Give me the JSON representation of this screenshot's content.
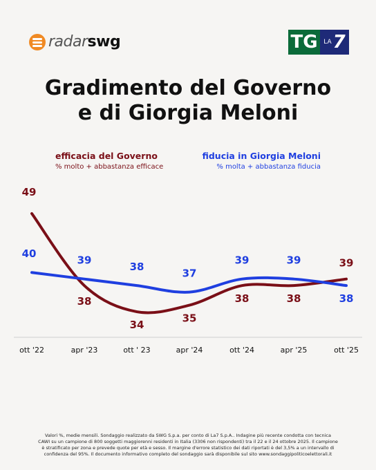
{
  "header": {
    "radar_logo_a": "radar",
    "radar_logo_b": "swg",
    "tg_logo": "TG",
    "la7_small": "LA",
    "la7_big": "7"
  },
  "title_line1": "Gradimento del Governo",
  "title_line2": "e di Giorgia Meloni",
  "colors": {
    "governo": "#7a0f17",
    "meloni": "#1f3fe0"
  },
  "chart_data": {
    "type": "line",
    "categories": [
      "ott '22",
      "apr '23",
      "ott ' 23",
      "apr '24",
      "ott '24",
      "apr '25",
      "ott '25"
    ],
    "series": [
      {
        "name": "efficacia del Governo",
        "subtitle": "% molto + abbastanza efficace",
        "values": [
          49,
          38,
          34,
          35,
          38,
          38,
          39
        ]
      },
      {
        "name": "fiducia in Giorgia Meloni",
        "subtitle": "% molta + abbastanza fiducia",
        "values": [
          40,
          39,
          38,
          37,
          39,
          39,
          38
        ]
      }
    ],
    "ylim": [
      32,
      51
    ]
  },
  "footnote": {
    "line1": "Valori %, medie mensili. Sondaggio realizzato da SWG S.p.a. per conto di La7 S.p.A.. Indagine più recente condotta con tecnica",
    "line2": "CAWI su un campione di 800 soggetti maggiorenni residenti in Italia (3306 non rispondenti) tra il 22 e il 24 ottobre 2025. Il campione",
    "line3": "è stratificato per zona e prevede quote per età e sesso. Il margine d'errore statistico dei dati riportati è del 3,5% a un intervallo di",
    "line4": "confidenza del 95%. Il documento informativo completo del sondaggio sarà disponibile sul sito www.sondaggipoliticoelettorali.it"
  }
}
